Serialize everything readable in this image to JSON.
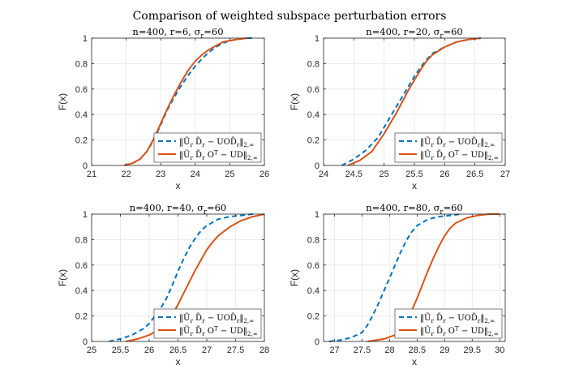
{
  "figure": {
    "title": "Comparison of weighted subspace perturbation errors"
  },
  "legend": {
    "entry1": "‖Ũ_r D̃_r − UOD̃_r‖_{2,∞}",
    "entry2": "‖Ũ_r D̃_r O^T − UD‖_{2,∞}"
  },
  "colors": {
    "series1": "#0072BD",
    "series2": "#D95319",
    "grid": "#e6e6e6",
    "axis": "#262626"
  },
  "chart_data": [
    {
      "type": "line",
      "title": "n=400, r=6, σ_r=60",
      "xlabel": "x",
      "ylabel": "F(x)",
      "xlim": [
        21,
        26
      ],
      "ylim": [
        0,
        1
      ],
      "xticks": [
        21,
        22,
        23,
        24,
        25,
        26
      ],
      "xtick_labels": [
        "21",
        "22",
        "23",
        "24",
        "25",
        "26"
      ],
      "yticks": [
        0,
        0.2,
        0.4,
        0.6,
        0.8,
        1
      ],
      "ytick_labels": [
        "0",
        "0.2",
        "0.4",
        "0.6",
        "0.8",
        "1"
      ],
      "grid": true,
      "legend_position": "bottom-right",
      "series": [
        {
          "name": "‖Ũ_r D̃_r − UOD̃_r‖_{2,∞}",
          "style": "dashed",
          "x": [
            21.95,
            22.2,
            22.4,
            22.6,
            22.8,
            23.0,
            23.2,
            23.4,
            23.6,
            23.8,
            24.0,
            24.2,
            24.4,
            24.6,
            24.8,
            25.0,
            25.2,
            25.5,
            25.7
          ],
          "y": [
            0.0,
            0.02,
            0.05,
            0.11,
            0.2,
            0.32,
            0.44,
            0.54,
            0.63,
            0.71,
            0.78,
            0.84,
            0.89,
            0.93,
            0.96,
            0.98,
            0.99,
            1.0,
            1.0
          ]
        },
        {
          "name": "‖Ũ_r D̃_r O^T − UD‖_{2,∞}",
          "style": "solid",
          "x": [
            21.95,
            22.2,
            22.4,
            22.6,
            22.8,
            23.0,
            23.2,
            23.4,
            23.6,
            23.8,
            24.0,
            24.2,
            24.4,
            24.6,
            24.8,
            25.0,
            25.2,
            25.5
          ],
          "y": [
            0.0,
            0.02,
            0.05,
            0.11,
            0.21,
            0.33,
            0.45,
            0.56,
            0.66,
            0.75,
            0.82,
            0.87,
            0.91,
            0.94,
            0.97,
            0.98,
            0.99,
            1.0
          ]
        }
      ]
    },
    {
      "type": "line",
      "title": "n=400, r=20, σ_r=60",
      "xlabel": "x",
      "ylabel": "F(x)",
      "xlim": [
        24,
        27
      ],
      "ylim": [
        0,
        1
      ],
      "xticks": [
        24,
        24.5,
        25,
        25.5,
        26,
        26.5,
        27
      ],
      "xtick_labels": [
        "24",
        "24.5",
        "25",
        "25.5",
        "26",
        "26.5",
        "27"
      ],
      "yticks": [
        0,
        0.2,
        0.4,
        0.6,
        0.8,
        1
      ],
      "ytick_labels": [
        "0",
        "0.2",
        "0.4",
        "0.6",
        "0.8",
        "1"
      ],
      "grid": true,
      "legend_position": "bottom-right",
      "series": [
        {
          "name": "‖Ũ_r D̃_r − UOD̃_r‖_{2,∞}",
          "style": "dashed",
          "x": [
            24.3,
            24.5,
            24.7,
            24.9,
            25.0,
            25.1,
            25.2,
            25.3,
            25.4,
            25.5,
            25.6,
            25.7,
            25.8,
            26.0,
            26.2,
            26.4,
            26.6
          ],
          "y": [
            0.0,
            0.05,
            0.12,
            0.22,
            0.3,
            0.38,
            0.46,
            0.54,
            0.62,
            0.7,
            0.77,
            0.83,
            0.88,
            0.93,
            0.97,
            0.99,
            1.0
          ]
        },
        {
          "name": "‖Ũ_r D̃_r O^T − UD‖_{2,∞}",
          "style": "solid",
          "x": [
            24.4,
            24.6,
            24.8,
            24.9,
            25.0,
            25.1,
            25.2,
            25.3,
            25.4,
            25.5,
            25.6,
            25.7,
            25.8,
            26.0,
            26.2,
            26.4,
            26.6
          ],
          "y": [
            0.0,
            0.04,
            0.11,
            0.18,
            0.25,
            0.33,
            0.41,
            0.5,
            0.59,
            0.67,
            0.75,
            0.82,
            0.87,
            0.93,
            0.97,
            0.99,
            1.0
          ]
        }
      ]
    },
    {
      "type": "line",
      "title": "n=400, r=40, σ_r=60",
      "xlabel": "x",
      "ylabel": "F(x)",
      "xlim": [
        25,
        28
      ],
      "ylim": [
        0,
        1
      ],
      "xticks": [
        25,
        25.5,
        26,
        26.5,
        27,
        27.5,
        28
      ],
      "xtick_labels": [
        "25",
        "25.5",
        "26",
        "26.5",
        "27",
        "27.5",
        "28"
      ],
      "yticks": [
        0,
        0.2,
        0.4,
        0.6,
        0.8,
        1
      ],
      "ytick_labels": [
        "0",
        "0.2",
        "0.4",
        "0.6",
        "0.8",
        "1"
      ],
      "grid": true,
      "legend_position": "bottom-right",
      "series": [
        {
          "name": "‖Ũ_r D̃_r − UOD̃_r‖_{2,∞}",
          "style": "dashed",
          "x": [
            25.3,
            25.5,
            25.7,
            25.9,
            26.0,
            26.1,
            26.2,
            26.3,
            26.4,
            26.5,
            26.6,
            26.7,
            26.8,
            26.9,
            27.0,
            27.2,
            27.4,
            27.6,
            27.8
          ],
          "y": [
            0.0,
            0.02,
            0.05,
            0.1,
            0.14,
            0.2,
            0.26,
            0.34,
            0.44,
            0.55,
            0.65,
            0.74,
            0.81,
            0.87,
            0.91,
            0.96,
            0.98,
            0.99,
            1.0
          ]
        },
        {
          "name": "‖Ũ_r D̃_r O^T − UD‖_{2,∞}",
          "style": "solid",
          "x": [
            25.6,
            25.8,
            26.0,
            26.2,
            26.3,
            26.4,
            26.5,
            26.6,
            26.7,
            26.8,
            26.9,
            27.0,
            27.1,
            27.2,
            27.4,
            27.6,
            27.8,
            28.0
          ],
          "y": [
            0.0,
            0.02,
            0.05,
            0.1,
            0.15,
            0.21,
            0.29,
            0.38,
            0.47,
            0.56,
            0.64,
            0.72,
            0.78,
            0.83,
            0.9,
            0.95,
            0.98,
            1.0
          ]
        }
      ]
    },
    {
      "type": "line",
      "title": "n=400, r=80, σ_r=60",
      "xlabel": "x",
      "ylabel": "F(x)",
      "xlim": [
        26.8,
        30.1
      ],
      "ylim": [
        0,
        1
      ],
      "xticks": [
        27,
        27.5,
        28,
        28.5,
        29,
        29.5,
        30
      ],
      "xtick_labels": [
        "27",
        "27.5",
        "28",
        "28.5",
        "29",
        "29.5",
        "30"
      ],
      "yticks": [
        0,
        0.2,
        0.4,
        0.6,
        0.8,
        1
      ],
      "ytick_labels": [
        "0",
        "0.2",
        "0.4",
        "0.6",
        "0.8",
        "1"
      ],
      "grid": true,
      "legend_position": "bottom-right",
      "series": [
        {
          "name": "‖Ũ_r D̃_r − UOD̃_r‖_{2,∞}",
          "style": "dashed",
          "x": [
            26.9,
            27.1,
            27.3,
            27.5,
            27.6,
            27.7,
            27.8,
            27.9,
            28.0,
            28.1,
            28.2,
            28.3,
            28.4,
            28.5,
            28.7,
            28.9,
            29.1,
            29.3
          ],
          "y": [
            0.0,
            0.01,
            0.03,
            0.07,
            0.13,
            0.21,
            0.3,
            0.4,
            0.5,
            0.6,
            0.7,
            0.79,
            0.86,
            0.91,
            0.96,
            0.98,
            0.99,
            1.0
          ]
        },
        {
          "name": "‖Ũ_r D̃_r O^T − UD‖_{2,∞}",
          "style": "solid",
          "x": [
            27.6,
            27.9,
            28.1,
            28.2,
            28.3,
            28.4,
            28.5,
            28.6,
            28.7,
            28.8,
            28.9,
            29.0,
            29.1,
            29.2,
            29.4,
            29.6,
            29.8,
            30.0
          ],
          "y": [
            0.0,
            0.02,
            0.05,
            0.09,
            0.15,
            0.24,
            0.34,
            0.45,
            0.56,
            0.66,
            0.75,
            0.83,
            0.89,
            0.93,
            0.97,
            0.99,
            1.0,
            1.0
          ]
        }
      ]
    }
  ]
}
